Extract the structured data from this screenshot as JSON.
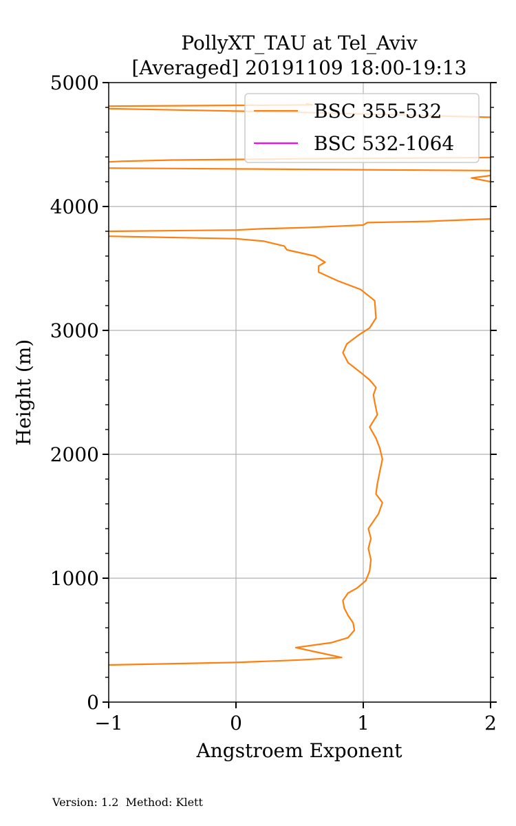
{
  "footer": {
    "version": "Version: 1.2",
    "method": "Method: Klett"
  },
  "chart_data": {
    "type": "line",
    "title_line1": "PollyXT_TAU at Tel_Aviv",
    "title_line2": "[Averaged] 20191109 18:00-19:13",
    "xlabel": "Angstroem Exponent",
    "ylabel": "Height (m)",
    "xlim": [
      -1,
      2
    ],
    "ylim": [
      0,
      5000
    ],
    "xticks": [
      -1,
      0,
      1,
      2
    ],
    "xtick_labels": [
      "−1",
      "0",
      "1",
      "2"
    ],
    "yticks": [
      0,
      1000,
      2000,
      3000,
      4000,
      5000
    ],
    "ytick_labels": [
      "0",
      "1000",
      "2000",
      "3000",
      "4000",
      "5000"
    ],
    "grid": true,
    "legend_position": "top-right",
    "series": [
      {
        "name": "BSC 355-532",
        "color": "#ff7f0e",
        "points": [
          [
            -1.0,
            300
          ],
          [
            0.0,
            320
          ],
          [
            0.5,
            340
          ],
          [
            0.83,
            360
          ],
          [
            0.65,
            400
          ],
          [
            0.47,
            440
          ],
          [
            0.75,
            480
          ],
          [
            0.88,
            520
          ],
          [
            0.93,
            580
          ],
          [
            0.92,
            640
          ],
          [
            0.88,
            700
          ],
          [
            0.85,
            760
          ],
          [
            0.84,
            820
          ],
          [
            0.88,
            880
          ],
          [
            0.95,
            920
          ],
          [
            1.02,
            980
          ],
          [
            1.05,
            1060
          ],
          [
            1.06,
            1150
          ],
          [
            1.04,
            1240
          ],
          [
            1.06,
            1320
          ],
          [
            1.04,
            1400
          ],
          [
            1.08,
            1460
          ],
          [
            1.12,
            1520
          ],
          [
            1.15,
            1610
          ],
          [
            1.1,
            1680
          ],
          [
            1.11,
            1760
          ],
          [
            1.13,
            1860
          ],
          [
            1.15,
            1960
          ],
          [
            1.13,
            2050
          ],
          [
            1.1,
            2130
          ],
          [
            1.05,
            2220
          ],
          [
            1.11,
            2320
          ],
          [
            1.09,
            2420
          ],
          [
            1.08,
            2480
          ],
          [
            1.1,
            2540
          ],
          [
            1.05,
            2600
          ],
          [
            0.98,
            2660
          ],
          [
            0.88,
            2740
          ],
          [
            0.84,
            2820
          ],
          [
            0.87,
            2890
          ],
          [
            0.96,
            2960
          ],
          [
            1.05,
            3020
          ],
          [
            1.1,
            3100
          ],
          [
            1.09,
            3240
          ],
          [
            0.98,
            3330
          ],
          [
            0.8,
            3400
          ],
          [
            0.65,
            3470
          ],
          [
            0.65,
            3520
          ],
          [
            0.7,
            3550
          ],
          [
            0.62,
            3600
          ],
          [
            0.4,
            3650
          ],
          [
            0.38,
            3680
          ],
          [
            0.22,
            3720
          ],
          [
            0.0,
            3740
          ],
          [
            -1.0,
            3760
          ]
        ]
      },
      {
        "name": "BSC 355-532",
        "color": "#ff7f0e",
        "points": [
          [
            -1.0,
            3800
          ],
          [
            0.0,
            3810
          ],
          [
            0.2,
            3820
          ],
          [
            0.55,
            3830
          ],
          [
            1.0,
            3850
          ],
          [
            1.03,
            3870
          ],
          [
            1.5,
            3880
          ],
          [
            2.0,
            3900
          ]
        ]
      },
      {
        "name": "BSC 355-532",
        "color": "#ff7f0e",
        "points": [
          [
            -1.0,
            4310
          ],
          [
            0.5,
            4300
          ],
          [
            2.0,
            4290
          ]
        ]
      },
      {
        "name": "BSC 355-532",
        "color": "#ff7f0e",
        "points": [
          [
            2.0,
            4200
          ],
          [
            1.85,
            4230
          ],
          [
            2.0,
            4250
          ]
        ]
      },
      {
        "name": "BSC 355-532",
        "color": "#ff7f0e",
        "points": [
          [
            -1.0,
            4360
          ],
          [
            -0.9,
            4365
          ],
          [
            -0.5,
            4375
          ],
          [
            0.5,
            4385
          ],
          [
            2.0,
            4395
          ]
        ]
      },
      {
        "name": "BSC 355-532",
        "color": "#ff7f0e",
        "points": [
          [
            2.0,
            4720
          ],
          [
            0.5,
            4760
          ],
          [
            -1.0,
            4790
          ]
        ]
      },
      {
        "name": "BSC 355-532",
        "color": "#ff7f0e",
        "points": [
          [
            -1.0,
            4810
          ],
          [
            0.6,
            4820
          ],
          [
            0.55,
            4830
          ]
        ]
      }
    ],
    "legend": [
      {
        "name": "BSC 355-532",
        "color": "#ff7f0e"
      },
      {
        "name": "BSC 532-1064",
        "color": "#ff00ff"
      }
    ]
  }
}
